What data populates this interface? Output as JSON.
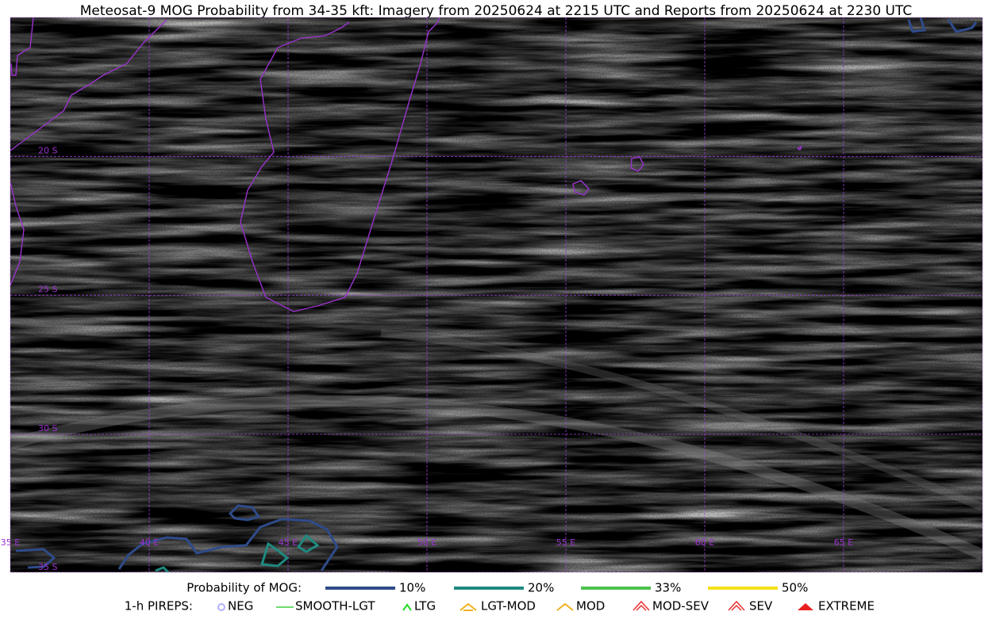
{
  "title": "Meteosat-9 MOG Probability from 34-35 kft: Imagery from 20250624 at 2215 UTC and Reports from 20250624 at 2230 UTC",
  "map": {
    "lat_labels": [
      "20 S",
      "25 S",
      "30 S",
      "35 S"
    ],
    "lon_labels": [
      "35 E",
      "40 E",
      "45 E",
      "50 E",
      "55 E",
      "60 E",
      "65 E"
    ]
  },
  "legend": {
    "probability": {
      "label": "Probability of MOG:",
      "items": [
        "10%",
        "20%",
        "33%",
        "50%"
      ]
    },
    "pireps": {
      "label": "1-h PIREPS:",
      "items": [
        "NEG",
        "SMOOTH-LGT",
        "LTG",
        "LGT-MOD",
        "MOD",
        "MOD-SEV",
        "SEV",
        "EXTREME"
      ]
    }
  }
}
